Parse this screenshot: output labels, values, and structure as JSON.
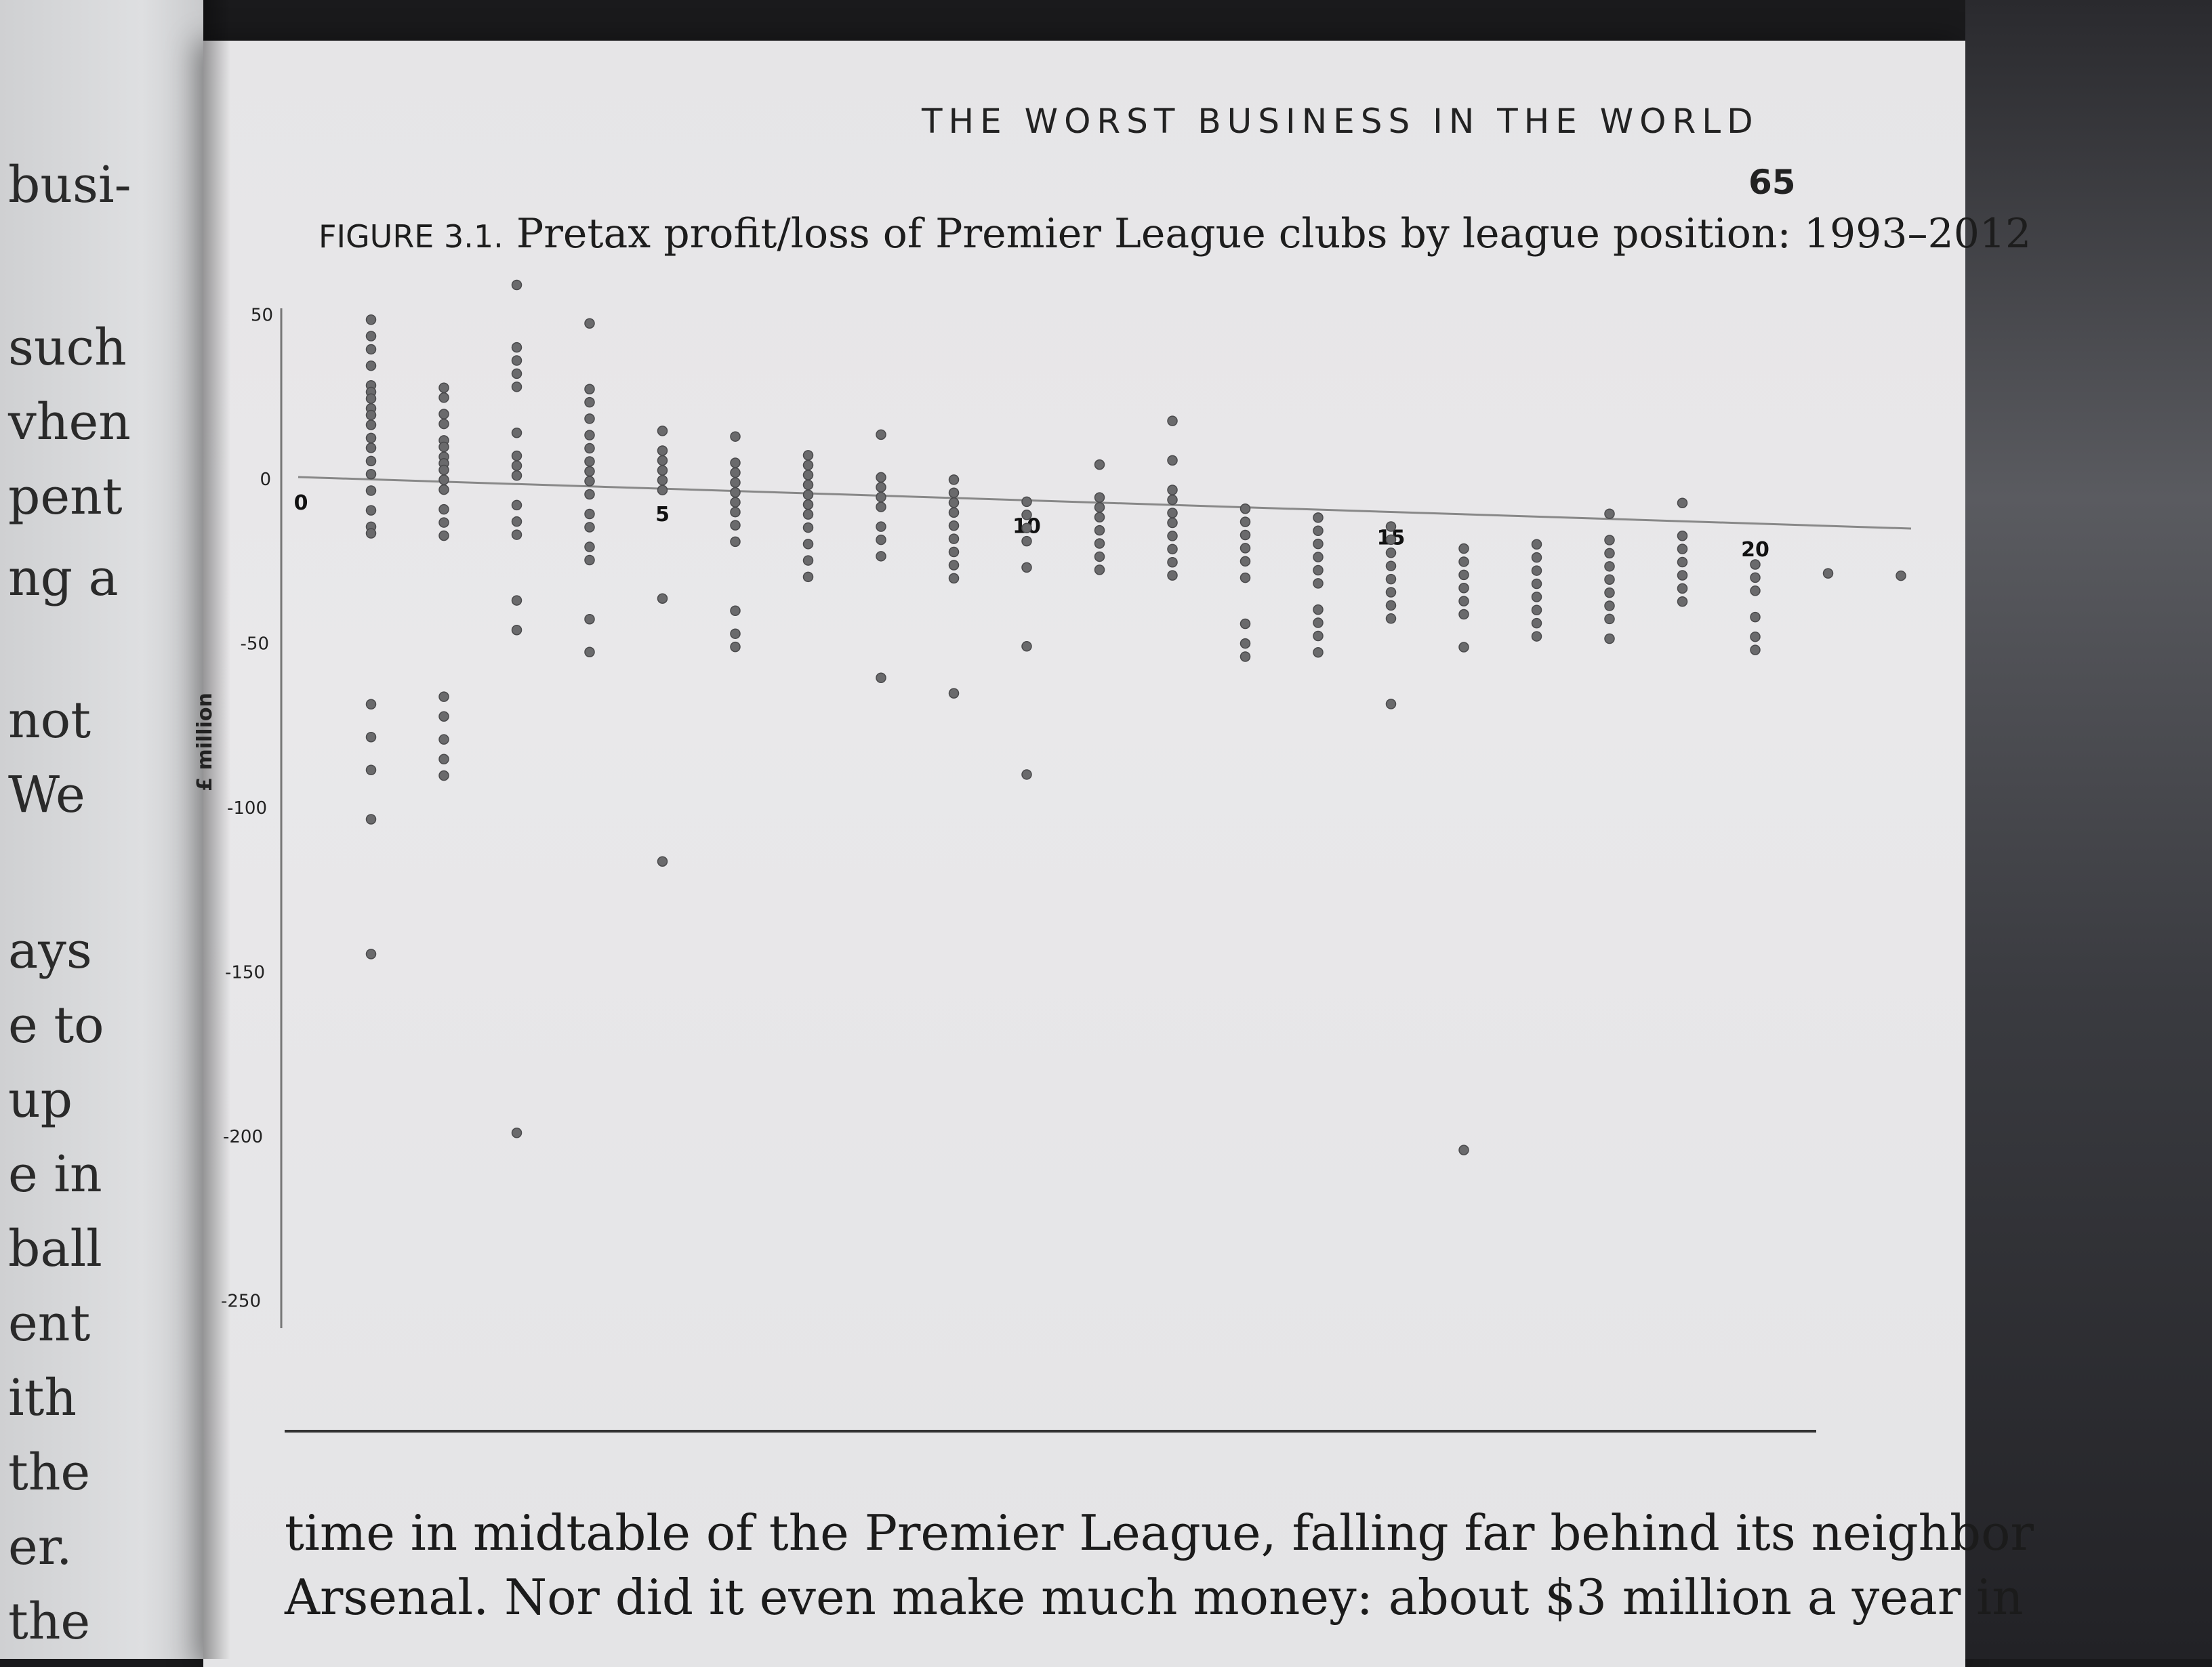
{
  "left_page": {
    "fragments": [
      "busi-",
      "such",
      "vhen",
      "pent",
      "ng a",
      "not",
      "We",
      "ays",
      "e to",
      "up",
      "e in",
      "ball",
      "ent",
      "ith",
      "the",
      "er.",
      "the"
    ]
  },
  "running_head": "THE WORST BUSINESS IN THE WORLD",
  "page_number": "65",
  "figure": {
    "label": "FIGURE 3.1.",
    "title": "Pretax profit/loss of Premier League clubs by league position: 1993–2012"
  },
  "chart_data": {
    "type": "scatter",
    "ylabel": "£ million",
    "xlabel": "",
    "ylim": [
      -250,
      50
    ],
    "yticks": [
      50,
      0,
      -50,
      -100,
      -150,
      -200,
      -250
    ],
    "xticks": [
      0,
      5,
      10,
      15,
      20
    ],
    "grid": false,
    "legend": "none",
    "points": [
      [
        1,
        49
      ],
      [
        1,
        44
      ],
      [
        1,
        40
      ],
      [
        1,
        35
      ],
      [
        1,
        29
      ],
      [
        1,
        27
      ],
      [
        1,
        25
      ],
      [
        1,
        22
      ],
      [
        1,
        20
      ],
      [
        1,
        17
      ],
      [
        1,
        13
      ],
      [
        1,
        10
      ],
      [
        1,
        6
      ],
      [
        1,
        2
      ],
      [
        1,
        -3
      ],
      [
        1,
        -9
      ],
      [
        1,
        -14
      ],
      [
        1,
        -16
      ],
      [
        1,
        -68
      ],
      [
        1,
        -78
      ],
      [
        1,
        -88
      ],
      [
        1,
        -103
      ],
      [
        1,
        -144
      ],
      [
        2,
        29
      ],
      [
        2,
        26
      ],
      [
        2,
        21
      ],
      [
        2,
        18
      ],
      [
        2,
        13
      ],
      [
        2,
        11
      ],
      [
        2,
        8
      ],
      [
        2,
        6
      ],
      [
        2,
        4
      ],
      [
        2,
        1
      ],
      [
        2,
        -2
      ],
      [
        2,
        -8
      ],
      [
        2,
        -12
      ],
      [
        2,
        -16
      ],
      [
        2,
        -65
      ],
      [
        2,
        -71
      ],
      [
        2,
        -78
      ],
      [
        2,
        -84
      ],
      [
        2,
        -89
      ],
      [
        3,
        61
      ],
      [
        3,
        42
      ],
      [
        3,
        38
      ],
      [
        3,
        34
      ],
      [
        3,
        30
      ],
      [
        3,
        16
      ],
      [
        3,
        9
      ],
      [
        3,
        6
      ],
      [
        3,
        3
      ],
      [
        3,
        -6
      ],
      [
        3,
        -11
      ],
      [
        3,
        -15
      ],
      [
        3,
        -35
      ],
      [
        3,
        -44
      ],
      [
        3,
        -197
      ],
      [
        4,
        50
      ],
      [
        4,
        30
      ],
      [
        4,
        26
      ],
      [
        4,
        21
      ],
      [
        4,
        16
      ],
      [
        4,
        12
      ],
      [
        4,
        8
      ],
      [
        4,
        5
      ],
      [
        4,
        2
      ],
      [
        4,
        -2
      ],
      [
        4,
        -8
      ],
      [
        4,
        -12
      ],
      [
        4,
        -18
      ],
      [
        4,
        -22
      ],
      [
        4,
        -40
      ],
      [
        4,
        -50
      ],
      [
        5,
        18
      ],
      [
        5,
        12
      ],
      [
        5,
        9
      ],
      [
        5,
        6
      ],
      [
        5,
        3
      ],
      [
        5,
        0
      ],
      [
        5,
        -33
      ],
      [
        5,
        -113
      ],
      [
        6,
        17
      ],
      [
        6,
        9
      ],
      [
        6,
        6
      ],
      [
        6,
        3
      ],
      [
        6,
        0
      ],
      [
        6,
        -3
      ],
      [
        6,
        -6
      ],
      [
        6,
        -10
      ],
      [
        6,
        -15
      ],
      [
        6,
        -36
      ],
      [
        6,
        -43
      ],
      [
        6,
        -47
      ],
      [
        7,
        12
      ],
      [
        7,
        9
      ],
      [
        7,
        6
      ],
      [
        7,
        3
      ],
      [
        7,
        0
      ],
      [
        7,
        -3
      ],
      [
        7,
        -6
      ],
      [
        7,
        -10
      ],
      [
        7,
        -15
      ],
      [
        7,
        -20
      ],
      [
        7,
        -25
      ],
      [
        8,
        19
      ],
      [
        8,
        6
      ],
      [
        8,
        3
      ],
      [
        8,
        0
      ],
      [
        8,
        -3
      ],
      [
        8,
        -9
      ],
      [
        8,
        -13
      ],
      [
        8,
        -18
      ],
      [
        8,
        -55
      ],
      [
        9,
        6
      ],
      [
        9,
        2
      ],
      [
        9,
        -1
      ],
      [
        9,
        -4
      ],
      [
        9,
        -8
      ],
      [
        9,
        -12
      ],
      [
        9,
        -16
      ],
      [
        9,
        -20
      ],
      [
        9,
        -24
      ],
      [
        9,
        -59
      ],
      [
        10,
        0
      ],
      [
        10,
        -4
      ],
      [
        10,
        -8
      ],
      [
        10,
        -12
      ],
      [
        10,
        -20
      ],
      [
        10,
        -44
      ],
      [
        10,
        -83
      ],
      [
        11,
        12
      ],
      [
        11,
        2
      ],
      [
        11,
        -1
      ],
      [
        11,
        -4
      ],
      [
        11,
        -8
      ],
      [
        11,
        -12
      ],
      [
        11,
        -16
      ],
      [
        11,
        -20
      ],
      [
        12,
        26
      ],
      [
        12,
        14
      ],
      [
        12,
        5
      ],
      [
        12,
        2
      ],
      [
        12,
        -2
      ],
      [
        12,
        -5
      ],
      [
        12,
        -9
      ],
      [
        12,
        -13
      ],
      [
        12,
        -17
      ],
      [
        12,
        -21
      ],
      [
        13,
        0
      ],
      [
        13,
        -4
      ],
      [
        13,
        -8
      ],
      [
        13,
        -12
      ],
      [
        13,
        -16
      ],
      [
        13,
        -21
      ],
      [
        13,
        -35
      ],
      [
        13,
        -41
      ],
      [
        13,
        -45
      ],
      [
        14,
        -2
      ],
      [
        14,
        -6
      ],
      [
        14,
        -10
      ],
      [
        14,
        -14
      ],
      [
        14,
        -18
      ],
      [
        14,
        -22
      ],
      [
        14,
        -30
      ],
      [
        14,
        -34
      ],
      [
        14,
        -38
      ],
      [
        14,
        -43
      ],
      [
        15,
        -4
      ],
      [
        15,
        -8
      ],
      [
        15,
        -12
      ],
      [
        15,
        -16
      ],
      [
        15,
        -20
      ],
      [
        15,
        -24
      ],
      [
        15,
        -28
      ],
      [
        15,
        -32
      ],
      [
        15,
        -58
      ],
      [
        16,
        -10
      ],
      [
        16,
        -14
      ],
      [
        16,
        -18
      ],
      [
        16,
        -22
      ],
      [
        16,
        -26
      ],
      [
        16,
        -30
      ],
      [
        16,
        -40
      ],
      [
        16,
        -193
      ],
      [
        17,
        -8
      ],
      [
        17,
        -12
      ],
      [
        17,
        -16
      ],
      [
        17,
        -20
      ],
      [
        17,
        -24
      ],
      [
        17,
        -28
      ],
      [
        17,
        -32
      ],
      [
        17,
        -36
      ],
      [
        18,
        2
      ],
      [
        18,
        -6
      ],
      [
        18,
        -10
      ],
      [
        18,
        -14
      ],
      [
        18,
        -18
      ],
      [
        18,
        -22
      ],
      [
        18,
        -26
      ],
      [
        18,
        -30
      ],
      [
        18,
        -36
      ],
      [
        19,
        6
      ],
      [
        19,
        -4
      ],
      [
        19,
        -8
      ],
      [
        19,
        -12
      ],
      [
        19,
        -16
      ],
      [
        19,
        -20
      ],
      [
        19,
        -24
      ],
      [
        20,
        -12
      ],
      [
        20,
        -16
      ],
      [
        20,
        -20
      ],
      [
        20,
        -28
      ],
      [
        20,
        -34
      ],
      [
        20,
        -38
      ],
      [
        21,
        -14
      ],
      [
        22,
        -14
      ]
    ]
  },
  "body_text": [
    "time in midtable of the Premier League, falling far behind its neighbor",
    "Arsenal. Nor did it even make much money: about $3 million a year in"
  ]
}
